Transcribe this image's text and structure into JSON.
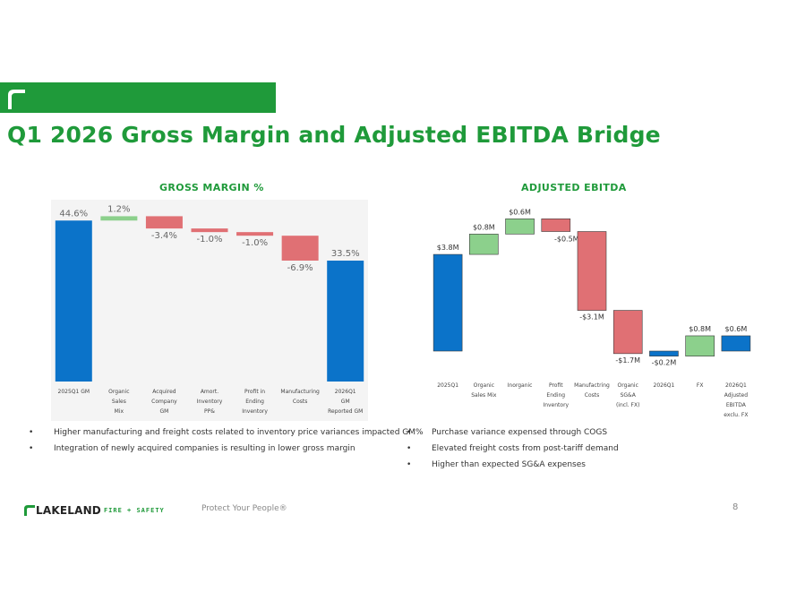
{
  "header": {
    "title": "Q1 2026 Gross Margin and Adjusted EBITDA Bridge"
  },
  "colors": {
    "brand_green": "#1f9a3a",
    "base_bar": "#0b73c9",
    "increase_bar": "#8cd08c",
    "decrease_bar": "#e07074",
    "panel_bg": "#f4f4f4"
  },
  "chart_data": [
    {
      "type": "waterfall",
      "title": "GROSS MARGIN %",
      "xlabel": "",
      "ylabel": "",
      "grid": false,
      "legend": "none",
      "categories": [
        [
          "2025Q1 GM"
        ],
        [
          "Organic",
          "Sales",
          "Mix"
        ],
        [
          "Acquired",
          "Company",
          "GM"
        ],
        [
          "Amort.",
          "Inventory",
          "PP&"
        ],
        [
          "Profit in",
          "Ending",
          "Inventory"
        ],
        [
          "Manufacturing",
          "Costs"
        ],
        [
          "2026Q1",
          "GM",
          "Reported GM"
        ]
      ],
      "values": [
        44.6,
        1.2,
        -3.4,
        -1.0,
        -1.0,
        -6.9,
        33.5
      ],
      "kinds": [
        "total",
        "delta",
        "delta",
        "delta",
        "delta",
        "delta",
        "total"
      ],
      "labels": [
        "44.6%",
        "1.2%",
        "-3.4%",
        "-1.0%",
        "-1.0%",
        "-6.9%",
        "33.5%"
      ]
    },
    {
      "type": "waterfall",
      "title": "ADJUSTED EBITDA",
      "xlabel": "",
      "ylabel": "",
      "grid": false,
      "legend": "none",
      "categories": [
        [
          "2025Q1"
        ],
        [
          "Organic",
          "Sales Mix"
        ],
        [
          "Inorganic"
        ],
        [
          "Profit",
          "Ending",
          "Inventory"
        ],
        [
          "Manufactring",
          "Costs"
        ],
        [
          "Organic",
          "SG&A",
          "(incl. FX)"
        ],
        [
          "2026Q1"
        ],
        [
          "FX"
        ],
        [
          "2026Q1",
          "Adjusted",
          "EBITDA",
          "exclu. FX"
        ]
      ],
      "values": [
        3.8,
        0.8,
        0.6,
        -0.5,
        -3.1,
        -1.7,
        -0.2,
        0.8,
        0.6
      ],
      "kinds": [
        "total",
        "delta",
        "delta",
        "delta",
        "delta",
        "delta",
        "total",
        "delta",
        "total"
      ],
      "labels": [
        "$3.8M",
        "$0.8M",
        "$0.6M",
        "-$0.5M",
        "-$3.1M",
        "-$1.7M",
        "-$0.2M",
        "$0.8M",
        "$0.6M"
      ]
    }
  ],
  "bullets_left": [
    "Higher manufacturing and freight costs  related to inventory price variances impacted GM%",
    "Integration of newly acquired companies is resulting in lower gross margin"
  ],
  "bullets_right": [
    "Purchase variance expensed through COGS",
    "Elevated freight costs from post-tariff demand",
    "Higher than expected SG&A expenses"
  ],
  "footer": {
    "brand_name": "LAKELAND",
    "brand_sub": "FIRE + SAFETY",
    "tagline": "Protect Your People®",
    "page_number": "8"
  }
}
